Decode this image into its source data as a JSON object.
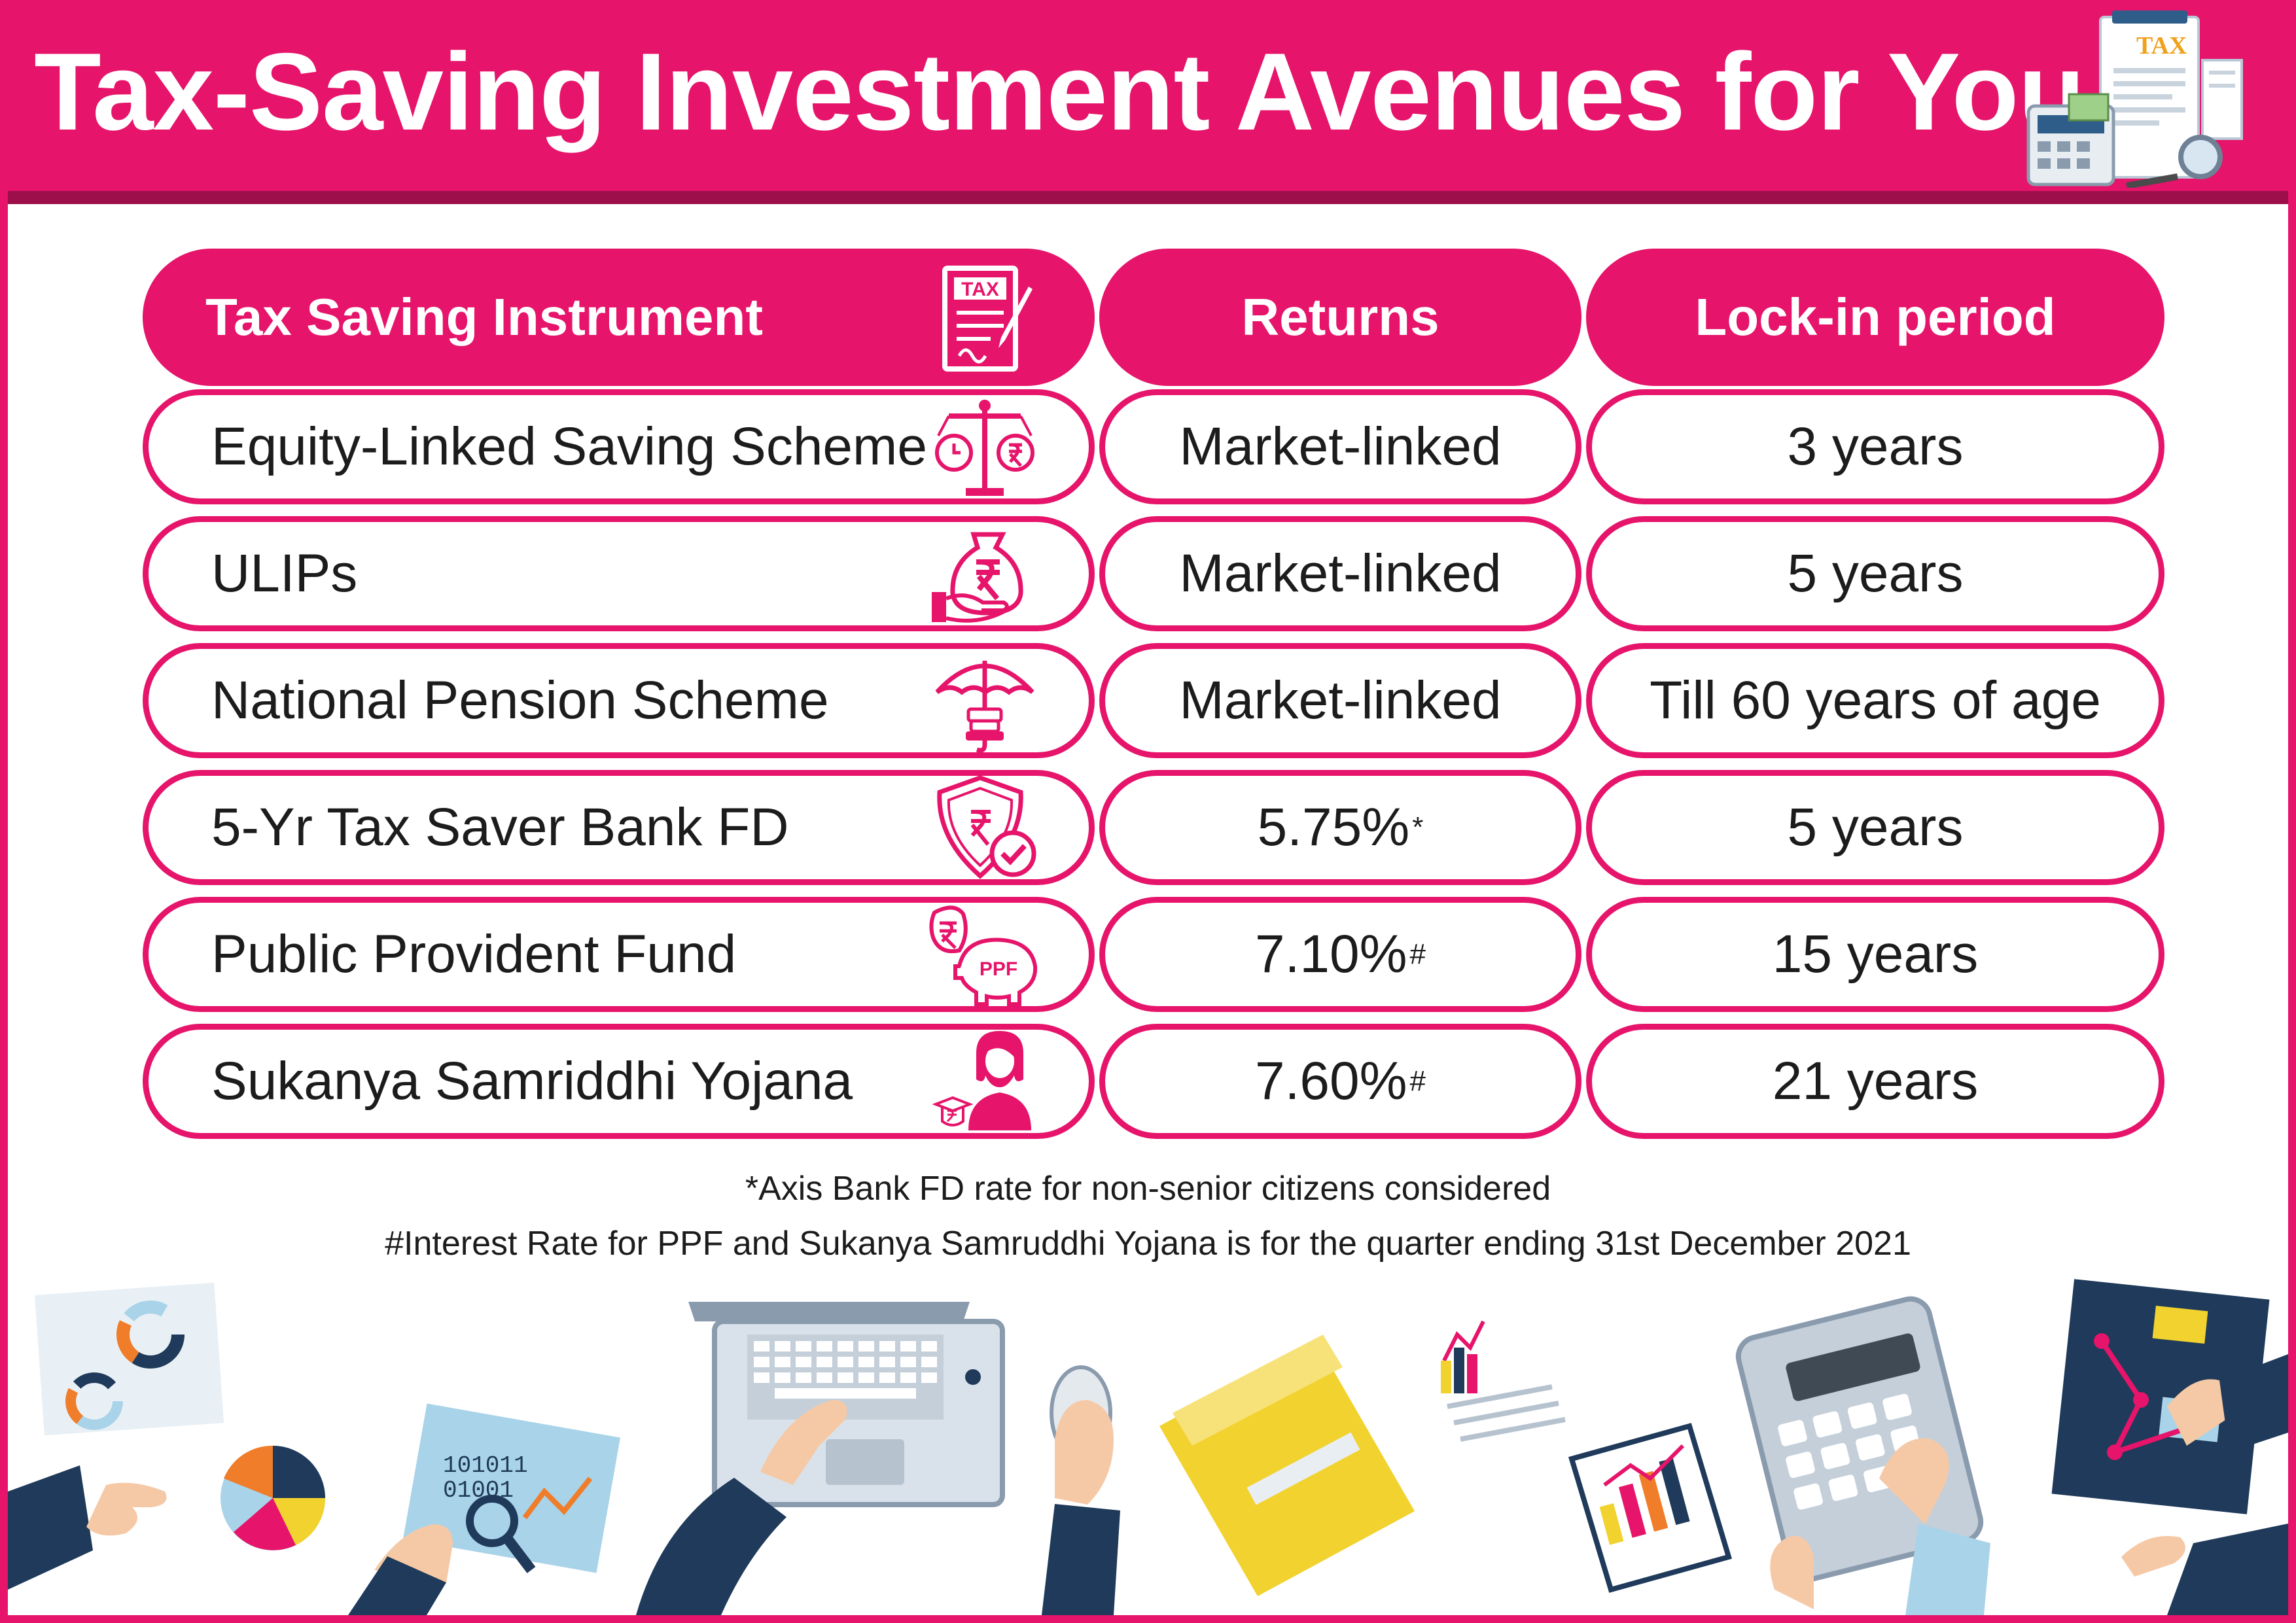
{
  "title": "Tax-Saving Investment Avenues for You",
  "title_icon": {
    "name": "tax-document-calculator-icon",
    "label": "TAX"
  },
  "table": {
    "headers": [
      "Tax Saving Instrument",
      "Returns",
      "Lock-in period"
    ],
    "header_icon": {
      "name": "tax-form-icon",
      "label": "TAX"
    },
    "rows": [
      {
        "instrument": "Equity-Linked Saving Scheme",
        "returns": "Market-linked",
        "returns_mark": "",
        "lockin": "3 years",
        "icon": "balance-scale-icon"
      },
      {
        "instrument": "ULIPs",
        "returns": "Market-linked",
        "returns_mark": "",
        "lockin": "5 years",
        "icon": "money-bag-hand-icon"
      },
      {
        "instrument": "National Pension Scheme",
        "returns": "Market-linked",
        "returns_mark": "",
        "lockin": "Till 60 years of age",
        "icon": "umbrella-pension-icon"
      },
      {
        "instrument": "5-Yr Tax Saver Bank FD",
        "returns": "5.75%",
        "returns_mark": "*",
        "lockin": "5 years",
        "icon": "shield-rupee-check-icon"
      },
      {
        "instrument": "Public Provident Fund",
        "returns": "7.10%",
        "returns_mark": "#",
        "lockin": "15 years",
        "icon": "piggy-bank-ppf-icon",
        "icon_label": "PPF"
      },
      {
        "instrument": "Sukanya Samriddhi Yojana",
        "returns": "7.60%",
        "returns_mark": "#",
        "lockin": "21 years",
        "icon": "girl-graduation-icon"
      }
    ]
  },
  "notes": [
    "*Axis Bank FD rate for non-senior citizens considered",
    "#Interest Rate for PPF and Sukanya Samruddhi Yojana is for the quarter ending 31st December 2021"
  ],
  "illustration": {
    "name": "office-desk-illustration",
    "binary_text": "101011\n01001\n10101",
    "colors": {
      "accent": "#e6146a",
      "navy": "#1f3a5a",
      "yellow": "#f2d22e",
      "orange": "#ef7d2a",
      "sky": "#a9d3e8"
    }
  },
  "colors": {
    "brand_pink": "#e6146a",
    "dark_pink": "#9c0f4a",
    "text": "#1c1c1c",
    "white": "#ffffff"
  }
}
